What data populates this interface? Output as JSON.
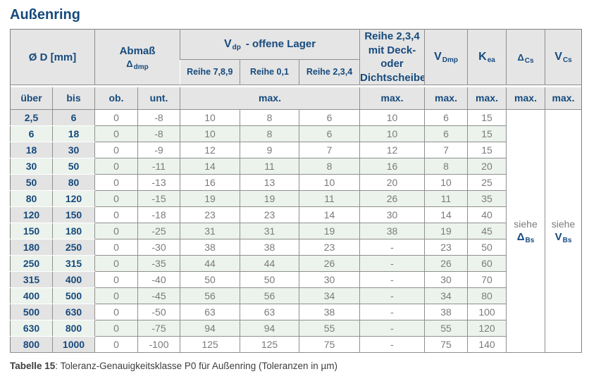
{
  "title": "Außenring",
  "colors": {
    "navy_text": "#164a7d",
    "header_bg": "#e5e5e5",
    "diameter_col_bg": "#e3e3e3",
    "row_green": "#ecf3ec",
    "data_text": "#7b7b7b",
    "border": "#8f8f8f"
  },
  "table": {
    "header": {
      "d_label": "Ø D  [mm]",
      "abmass_line1": "Abmaß",
      "abmass_sym": "Δ",
      "abmass_sub": "dmp",
      "vdp_sym": "V",
      "vdp_sub": "dp",
      "vdp_rest": "-  offene Lager",
      "reihe789": "Reihe 7,8,9",
      "reihe01": "Reihe 0,1",
      "reihe234": "Reihe 2,3,4",
      "deck_line1": "Reihe 2,3,4",
      "deck_line2": "mit Deck- oder",
      "deck_line3": "Dichtscheiben",
      "vdmp_sym": "V",
      "vdmp_sub": "Dmp",
      "kea_sym": "K",
      "kea_sub": "ea",
      "dcs_sym": "Δ",
      "dcs_sub": "Cs",
      "vcs_sym": "V",
      "vcs_sub": "Cs",
      "ueber": "über",
      "bis": "bis",
      "ob": "ob.",
      "unt": "unt.",
      "max_label": "max."
    },
    "column_keys": [
      "ueber",
      "bis",
      "ob",
      "unt",
      "reihe789",
      "reihe01",
      "reihe234",
      "deck",
      "vdmp",
      "kea"
    ],
    "rows": [
      [
        "2,5",
        "6",
        "0",
        "-8",
        "10",
        "8",
        "6",
        "10",
        "6",
        "15"
      ],
      [
        "6",
        "18",
        "0",
        "-8",
        "10",
        "8",
        "6",
        "10",
        "6",
        "15"
      ],
      [
        "18",
        "30",
        "0",
        "-9",
        "12",
        "9",
        "7",
        "12",
        "7",
        "15"
      ],
      [
        "30",
        "50",
        "0",
        "-11",
        "14",
        "11",
        "8",
        "16",
        "8",
        "20"
      ],
      [
        "50",
        "80",
        "0",
        "-13",
        "16",
        "13",
        "10",
        "20",
        "10",
        "25"
      ],
      [
        "80",
        "120",
        "0",
        "-15",
        "19",
        "19",
        "11",
        "26",
        "11",
        "35"
      ],
      [
        "120",
        "150",
        "0",
        "-18",
        "23",
        "23",
        "14",
        "30",
        "14",
        "40"
      ],
      [
        "150",
        "180",
        "0",
        "-25",
        "31",
        "31",
        "19",
        "38",
        "19",
        "45"
      ],
      [
        "180",
        "250",
        "0",
        "-30",
        "38",
        "38",
        "23",
        "-",
        "23",
        "50"
      ],
      [
        "250",
        "315",
        "0",
        "-35",
        "44",
        "44",
        "26",
        "-",
        "26",
        "60"
      ],
      [
        "315",
        "400",
        "0",
        "-40",
        "50",
        "50",
        "30",
        "-",
        "30",
        "70"
      ],
      [
        "400",
        "500",
        "0",
        "-45",
        "56",
        "56",
        "34",
        "-",
        "34",
        "80"
      ],
      [
        "500",
        "630",
        "0",
        "-50",
        "63",
        "63",
        "38",
        "-",
        "38",
        "100"
      ],
      [
        "630",
        "800",
        "0",
        "-75",
        "94",
        "94",
        "55",
        "-",
        "55",
        "120"
      ],
      [
        "800",
        "1000",
        "0",
        "-100",
        "125",
        "125",
        "75",
        "-",
        "75",
        "140"
      ]
    ],
    "siehe_dbs": {
      "word": "siehe",
      "sym": "Δ",
      "sub": "Bs"
    },
    "siehe_vbs": {
      "word": "siehe",
      "sym": "V",
      "sub": "Bs"
    }
  },
  "caption": {
    "label": "Tabelle 15",
    "text": ": Toleranz-Genauigkeitsklasse P0 für Außenring (Toleranzen in µm)"
  }
}
